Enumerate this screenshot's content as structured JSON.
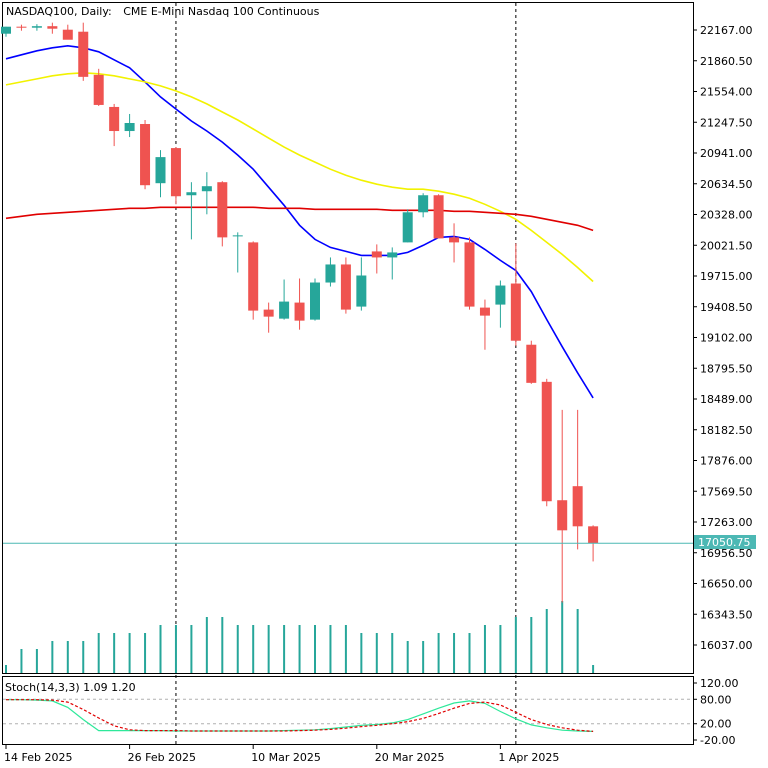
{
  "header": {
    "symbol_label": "NASDAQ100, Daily:",
    "description": "CME E-Mini Nasdaq 100 Continuous"
  },
  "colors": {
    "bull": "#26a69a",
    "bear": "#ef5350",
    "ma_fast": "#0000ff",
    "ma_mid": "#f2f200",
    "ma_slow": "#e00000",
    "stoch_main": "#2ee89a",
    "stoch_signal": "#e00000",
    "price_line": "#4cb8b4"
  },
  "price_axis": {
    "ticks": [
      "22167.00",
      "21860.50",
      "21554.00",
      "21247.50",
      "20941.00",
      "20634.50",
      "20328.00",
      "20021.50",
      "19715.00",
      "19408.50",
      "19102.00",
      "18795.50",
      "18489.00",
      "18182.50",
      "17876.00",
      "17569.50",
      "17263.00",
      "16956.50",
      "16650.00",
      "16343.50",
      "16037.00"
    ],
    "current_price": "17050.75"
  },
  "time_axis": {
    "labels": [
      "14 Feb 2025",
      "26 Feb 2025",
      "10 Mar 2025",
      "20 Mar 2025",
      "1 Apr 2025"
    ]
  },
  "stoch_panel": {
    "label": "Stoch(14,3,3) 1.09 1.20",
    "ticks": [
      "120.00",
      "80.00",
      "20.00",
      "-20.00"
    ]
  },
  "chart_data": {
    "type": "candlestick",
    "title": "NASDAQ100, Daily: CME E-Mini Nasdaq 100 Continuous",
    "ylim": [
      16037,
      22167
    ],
    "candles": [
      {
        "o": 22130,
        "h": 22200,
        "l": 22100,
        "c": 22200
      },
      {
        "o": 22200,
        "h": 22220,
        "l": 22160,
        "c": 22190
      },
      {
        "o": 22190,
        "h": 22225,
        "l": 22160,
        "c": 22205
      },
      {
        "o": 22205,
        "h": 22240,
        "l": 22130,
        "c": 22180
      },
      {
        "o": 22170,
        "h": 22220,
        "l": 22080,
        "c": 22070
      },
      {
        "o": 22150,
        "h": 22240,
        "l": 21660,
        "c": 21700
      },
      {
        "o": 21720,
        "h": 21780,
        "l": 21410,
        "c": 21420
      },
      {
        "o": 21400,
        "h": 21430,
        "l": 21010,
        "c": 21160
      },
      {
        "o": 21160,
        "h": 21330,
        "l": 21100,
        "c": 21240
      },
      {
        "o": 21230,
        "h": 21270,
        "l": 20580,
        "c": 20620
      },
      {
        "o": 20640,
        "h": 20970,
        "l": 20500,
        "c": 20900
      },
      {
        "o": 20990,
        "h": 21000,
        "l": 20430,
        "c": 20510
      },
      {
        "o": 20520,
        "h": 20650,
        "l": 20080,
        "c": 20550
      },
      {
        "o": 20560,
        "h": 20750,
        "l": 20330,
        "c": 20610
      },
      {
        "o": 20650,
        "h": 20660,
        "l": 20010,
        "c": 20100
      },
      {
        "o": 20110,
        "h": 20150,
        "l": 19750,
        "c": 20120
      },
      {
        "o": 20050,
        "h": 20060,
        "l": 19280,
        "c": 19370
      },
      {
        "o": 19380,
        "h": 19450,
        "l": 19150,
        "c": 19310
      },
      {
        "o": 19290,
        "h": 19680,
        "l": 19280,
        "c": 19460
      },
      {
        "o": 19450,
        "h": 19690,
        "l": 19180,
        "c": 19270
      },
      {
        "o": 19280,
        "h": 19690,
        "l": 19270,
        "c": 19650
      },
      {
        "o": 19650,
        "h": 19900,
        "l": 19610,
        "c": 19830
      },
      {
        "o": 19830,
        "h": 19900,
        "l": 19340,
        "c": 19380
      },
      {
        "o": 19410,
        "h": 19900,
        "l": 19370,
        "c": 19720
      },
      {
        "o": 19960,
        "h": 20030,
        "l": 19740,
        "c": 19900
      },
      {
        "o": 19900,
        "h": 20000,
        "l": 19680,
        "c": 19950
      },
      {
        "o": 20050,
        "h": 20380,
        "l": 20050,
        "c": 20350
      },
      {
        "o": 20350,
        "h": 20540,
        "l": 20300,
        "c": 20520
      },
      {
        "o": 20520,
        "h": 20530,
        "l": 20090,
        "c": 20090
      },
      {
        "o": 20100,
        "h": 20240,
        "l": 19850,
        "c": 20050
      },
      {
        "o": 20050,
        "h": 20100,
        "l": 19380,
        "c": 19410
      },
      {
        "o": 19400,
        "h": 19480,
        "l": 18980,
        "c": 19320
      },
      {
        "o": 19430,
        "h": 19670,
        "l": 19200,
        "c": 19620
      },
      {
        "o": 19640,
        "h": 20040,
        "l": 19020,
        "c": 19070
      },
      {
        "o": 19030,
        "h": 19070,
        "l": 18640,
        "c": 18650
      },
      {
        "o": 18660,
        "h": 18690,
        "l": 17420,
        "c": 17470
      },
      {
        "o": 17480,
        "h": 18380,
        "l": 16460,
        "c": 17180
      },
      {
        "o": 17620,
        "h": 18380,
        "l": 16990,
        "c": 17220
      },
      {
        "o": 17220,
        "h": 17230,
        "l": 16870,
        "c": 17050
      }
    ],
    "moving_averages": [
      {
        "color_key": "ma_fast",
        "values": [
          21880,
          21920,
          21960,
          21990,
          22010,
          21990,
          21950,
          21870,
          21790,
          21650,
          21500,
          21380,
          21260,
          21160,
          21050,
          20920,
          20780,
          20600,
          20420,
          20220,
          20080,
          20000,
          19960,
          19920,
          19920,
          19920,
          19950,
          20020,
          20100,
          20110,
          20080,
          19980,
          19870,
          19770,
          19560,
          19280,
          19010,
          18750,
          18500
        ]
      },
      {
        "color_key": "ma_mid",
        "values": [
          21620,
          21650,
          21680,
          21710,
          21730,
          21740,
          21730,
          21710,
          21680,
          21650,
          21610,
          21560,
          21500,
          21430,
          21350,
          21270,
          21180,
          21090,
          21000,
          20920,
          20850,
          20780,
          20720,
          20670,
          20630,
          20600,
          20580,
          20580,
          20560,
          20530,
          20490,
          20430,
          20360,
          20280,
          20170,
          20050,
          19930,
          19800,
          19660
        ]
      },
      {
        "color_key": "ma_slow",
        "values": [
          20290,
          20310,
          20330,
          20340,
          20350,
          20360,
          20370,
          20380,
          20390,
          20390,
          20400,
          20400,
          20400,
          20400,
          20400,
          20400,
          20400,
          20390,
          20390,
          20390,
          20380,
          20380,
          20380,
          20380,
          20380,
          20370,
          20370,
          20370,
          20370,
          20360,
          20360,
          20350,
          20340,
          20330,
          20310,
          20280,
          20250,
          20220,
          20170
        ]
      }
    ],
    "volume": [
      1,
      3,
      3,
      4,
      4,
      4,
      5,
      5,
      5,
      5,
      6,
      6,
      6,
      7,
      7,
      6,
      6,
      6,
      6,
      6,
      6,
      6,
      6,
      5,
      5,
      5,
      4,
      4,
      5,
      5,
      5,
      6,
      6,
      7,
      7,
      8,
      9,
      8,
      1
    ],
    "stochastic": {
      "ylim": [
        -20,
        120
      ],
      "levels": [
        80,
        20
      ],
      "main": [
        79,
        79,
        78,
        76,
        60,
        30,
        3,
        3,
        3,
        3,
        3,
        2,
        2,
        2,
        2,
        2,
        2,
        2,
        3,
        4,
        5,
        8,
        12,
        16,
        18,
        22,
        30,
        44,
        58,
        71,
        76,
        70,
        50,
        32,
        17,
        10,
        4,
        2,
        1.09
      ],
      "signal": [
        79,
        79,
        79,
        78,
        73,
        55,
        34,
        15,
        5,
        3,
        3,
        3,
        2,
        2,
        2,
        2,
        2,
        2,
        2,
        3,
        4,
        6,
        9,
        13,
        16,
        20,
        25,
        33,
        45,
        58,
        70,
        73,
        66,
        48,
        30,
        18,
        10,
        4,
        1.2
      ]
    },
    "x_labels": [
      "14 Feb 2025",
      "26 Feb 2025",
      "10 Mar 2025",
      "20 Mar 2025",
      "1 Apr 2025"
    ],
    "x_label_indices": [
      0,
      8,
      16,
      24,
      32
    ],
    "period_separators": [
      11,
      33
    ]
  }
}
